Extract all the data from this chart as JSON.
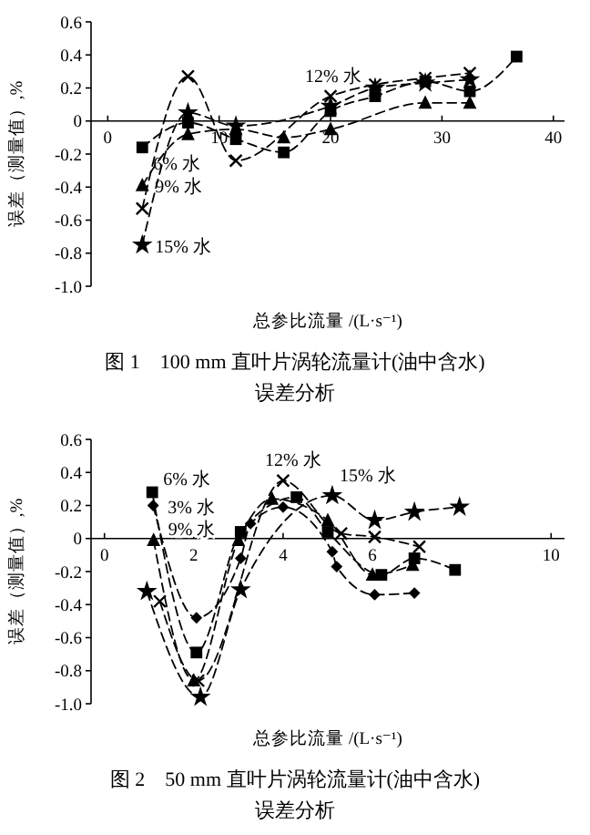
{
  "chart_data": [
    {
      "type": "line",
      "title": "图 1　100 mm 直叶片涡轮流量计(油中含水)",
      "subtitle": "误差分析",
      "xlabel": "总参比流量 /(L·s⁻¹)",
      "ylabel": "误差（测量值）,%",
      "xlim": [
        -1.5,
        41
      ],
      "xticks": [
        0,
        10,
        20,
        30,
        40
      ],
      "ylim": [
        -1.0,
        0.6
      ],
      "yticks": [
        0.6,
        0.4,
        0.2,
        0,
        -0.2,
        -0.4,
        -0.6,
        -0.8,
        {
          "value": -1.0,
          "label": "-1.0"
        }
      ],
      "grid": false,
      "line_style": "dashed",
      "series": [
        {
          "name": "6% 水",
          "color": "#000000",
          "marker": "square",
          "x": [
            3.1,
            7.2,
            11.5,
            15.8,
            20,
            24,
            28.5,
            32.5,
            36.7
          ],
          "values": [
            -0.16,
            -0.01,
            -0.11,
            -0.19,
            0.06,
            0.15,
            0.24,
            0.18,
            0.39
          ]
        },
        {
          "name": "9% 水",
          "color": "#000000",
          "marker": "triangle",
          "x": [
            3.1,
            7.2,
            11.5,
            15.8,
            20,
            28.5,
            32.5
          ],
          "values": [
            -0.39,
            -0.08,
            -0.05,
            -0.1,
            -0.05,
            0.11,
            0.11
          ]
        },
        {
          "name": "12% 水",
          "color": "#000000",
          "marker": "cross",
          "x": [
            3.1,
            7.2,
            11.5,
            20,
            24,
            28.5,
            32.5
          ],
          "values": [
            -0.53,
            0.27,
            -0.24,
            0.15,
            0.22,
            0.26,
            0.29
          ]
        },
        {
          "name": "15% 水",
          "color": "#000000",
          "marker": "star",
          "x": [
            3.1,
            7.2,
            11.5,
            20,
            24,
            28.5,
            32.5
          ],
          "values": [
            -0.75,
            0.05,
            -0.03,
            0.09,
            0.2,
            0.23,
            0.25
          ]
        }
      ]
    },
    {
      "type": "line",
      "title": "图 2　50 mm 直叶片涡轮流量计(油中含水)",
      "subtitle": "误差分析",
      "xlabel": "总参比流量 /(L·s⁻¹)",
      "ylabel": "误差（测量值）,%",
      "xlim": [
        -0.3,
        10.3
      ],
      "xticks": [
        0,
        2,
        4,
        6,
        10
      ],
      "ylim": [
        -1.0,
        0.6
      ],
      "yticks": [
        0.6,
        0.4,
        0.2,
        0,
        -0.2,
        -0.4,
        -0.6,
        -0.8,
        {
          "value": -1.0,
          "label": "-1.0"
        }
      ],
      "grid": false,
      "line_style": "dashed",
      "series": [
        {
          "name": "6% 水",
          "color": "#000000",
          "marker": "square",
          "x": [
            1.07,
            2.06,
            3.05,
            4.3,
            5.0,
            6.2,
            6.94,
            7.85
          ],
          "values": [
            0.28,
            -0.69,
            0.04,
            0.25,
            0.04,
            -0.22,
            -0.12,
            -0.19
          ]
        },
        {
          "name": "3% 水",
          "color": "#000000",
          "marker": "diamond",
          "x": [
            1.09,
            2.06,
            3.05,
            3.27,
            4.0,
            5.1,
            5.2,
            6.05,
            6.94
          ],
          "values": [
            0.2,
            -0.48,
            -0.12,
            0.09,
            0.19,
            -0.08,
            -0.17,
            -0.34,
            -0.33
          ]
        },
        {
          "name": "9% 水",
          "color": "#000000",
          "marker": "triangle",
          "x": [
            1.1,
            2.0,
            3.0,
            3.75,
            5.0,
            6.0,
            6.9
          ],
          "values": [
            -0.01,
            -0.86,
            -0.01,
            0.24,
            0.11,
            -0.22,
            -0.16
          ]
        },
        {
          "name": "12% 水",
          "color": "#000000",
          "marker": "cross",
          "x": [
            1.24,
            2.1,
            4.0,
            5.3,
            6.05,
            7.05
          ],
          "values": [
            -0.38,
            -0.86,
            0.35,
            0.03,
            0.01,
            -0.05
          ]
        },
        {
          "name": "15% 水",
          "color": "#000000",
          "marker": "star",
          "x": [
            0.95,
            2.15,
            3.05,
            5.1,
            6.05,
            6.94,
            7.95
          ],
          "values": [
            -0.32,
            -0.96,
            -0.31,
            0.26,
            0.11,
            0.16,
            0.19
          ]
        }
      ]
    }
  ]
}
